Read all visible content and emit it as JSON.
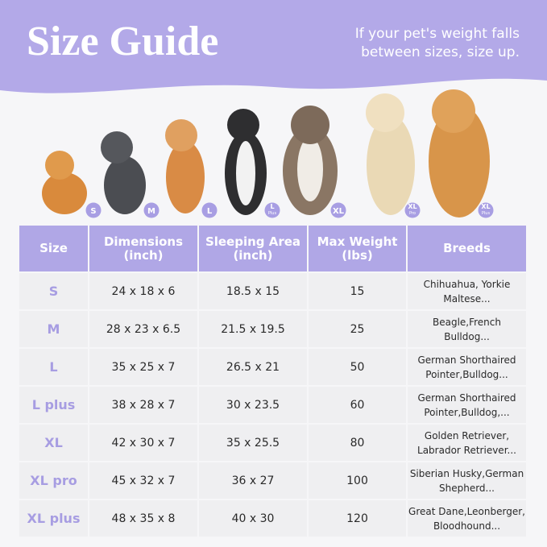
{
  "header": {
    "title": "Size Guide",
    "subtitle": [
      "If your pet's weight falls",
      "between sizes, size up."
    ]
  },
  "badges": [
    {
      "main": "S"
    },
    {
      "main": "M"
    },
    {
      "main": "L"
    },
    {
      "main": "L",
      "sub": "Plus"
    },
    {
      "main": "XL"
    },
    {
      "main": "XL",
      "sub": "Pro"
    },
    {
      "main": "XL",
      "sub": "Plus"
    }
  ],
  "table": {
    "columns": [
      [
        "Size"
      ],
      [
        "Dimensions",
        "(inch)"
      ],
      [
        "Sleeping Area",
        "(inch)"
      ],
      [
        "Max Weight",
        "(lbs)"
      ],
      [
        "Breeds"
      ]
    ],
    "rows": [
      [
        "S",
        "24 x 18 x 6",
        "18.5 x 15",
        "15",
        [
          "Chihuahua, Yorkie",
          "Maltese..."
        ]
      ],
      [
        "M",
        "28 x 23 x 6.5",
        "21.5 x 19.5",
        "25",
        [
          "Beagle,French",
          "Bulldog..."
        ]
      ],
      [
        "L",
        "35 x 25 x 7",
        "26.5 x 21",
        "50",
        [
          "German Shorthaired",
          "Pointer,Bulldog..."
        ]
      ],
      [
        "L plus",
        "38 x 28 x 7",
        "30 x 23.5",
        "60",
        [
          "German Shorthaired",
          "Pointer,Bulldog,..."
        ]
      ],
      [
        "XL",
        "42 x 30 x 7",
        "35 x 25.5",
        "80",
        [
          "Golden Retriever,",
          "Labrador Retriever..."
        ]
      ],
      [
        "XL pro",
        "45 x 32 x 7",
        "36 x 27",
        "100",
        [
          "Siberian Husky,German",
          "Shepherd..."
        ]
      ],
      [
        "XL plus",
        "48 x 35 x 8",
        "40 x 30",
        "120",
        [
          "Great Dane,Leonberger,",
          "Bloodhound..."
        ]
      ]
    ]
  }
}
